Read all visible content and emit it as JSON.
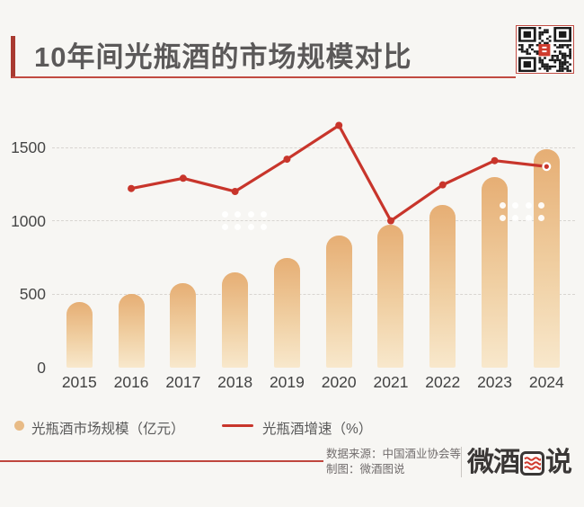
{
  "header": {
    "title": "10年间光瓶酒的市场规模对比",
    "qr_code": "wechat-qr-code"
  },
  "chart_data": {
    "type": "bar+line",
    "title": "10年间光瓶酒的市场规模对比",
    "categories": [
      "2015",
      "2016",
      "2017",
      "2018",
      "2019",
      "2020",
      "2021",
      "2022",
      "2023",
      "2024"
    ],
    "series": [
      {
        "name": "光瓶酒市场规模（亿元）",
        "type": "bar",
        "unit": "亿元",
        "values": [
          445,
          505,
          575,
          650,
          750,
          900,
          975,
          1110,
          1300,
          1490
        ]
      },
      {
        "name": "光瓶酒增速（%）",
        "type": "line",
        "unit": "%",
        "note": "secondary axis unlabeled; values are positions read against the left axis scale",
        "values_on_left_axis_scale": [
          null,
          1220,
          1290,
          1200,
          1420,
          1650,
          1000,
          1245,
          1410,
          1370
        ]
      }
    ],
    "yticks": [
      0,
      500,
      1000,
      1500
    ],
    "ylim": [
      0,
      1700
    ],
    "grid": "horizontal dashed",
    "legend_position": "bottom-left"
  },
  "legend": {
    "items": [
      {
        "label": "光瓶酒市场规模（亿元）",
        "swatch": "circle",
        "color": "#e8bb86"
      },
      {
        "label": "光瓶酒增速（%）",
        "swatch": "line",
        "color": "#c8352b"
      }
    ]
  },
  "footer": {
    "source_label": "数据来源：中国酒业协会等",
    "credit_label": "制图：微酒图说",
    "logo": {
      "prefix": "微酒",
      "emblem": "图",
      "suffix": "说"
    }
  },
  "colors": {
    "background": "#f7f6f3",
    "accent_red": "#a93a31",
    "rule_red": "#c14a41",
    "line_red": "#c8352b",
    "bar_top": "#e6ae74",
    "bar_bottom": "#f8e8cc",
    "title_text": "#5b5959"
  }
}
